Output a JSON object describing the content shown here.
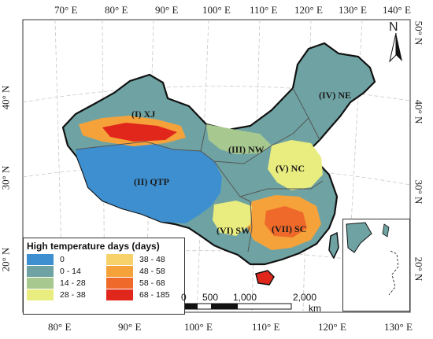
{
  "top_lon_labels": [
    "70° E",
    "80° E",
    "90° E",
    "100° E",
    "110° E",
    "120° E",
    "130° E",
    "140° E"
  ],
  "bottom_lon_labels": [
    "80° E",
    "90° E",
    "100° E",
    "110° E",
    "120° E",
    "130° E"
  ],
  "left_lat_labels": [
    "40° N",
    "30° N",
    "20° N"
  ],
  "right_lat_labels": [
    "50° N",
    "40° N",
    "30° N",
    "20° N"
  ],
  "north_arrow": "N",
  "regions": {
    "xj": "(I) XJ",
    "qtp": "(II) QTP",
    "nw": "(III) NW",
    "ne": "(IV) NE",
    "nc": "(V) NC",
    "sw": "(VI) SW",
    "sc": "(VII) SC"
  },
  "legend": {
    "title": "High temperature days (days)",
    "items": [
      {
        "label": "0",
        "color": "#3d8fd0"
      },
      {
        "label": "38 - 48",
        "color": "#f7d26a"
      },
      {
        "label": "0 - 14",
        "color": "#6fa3a3"
      },
      {
        "label": "48 - 58",
        "color": "#f6a23a"
      },
      {
        "label": "14 - 28",
        "color": "#a7c98f"
      },
      {
        "label": "58 - 68",
        "color": "#ef6a2a"
      },
      {
        "label": "28 - 38",
        "color": "#e9ec7e"
      },
      {
        "label": "68 - 185",
        "color": "#e1261c"
      }
    ]
  },
  "scale": {
    "ticks": [
      "0",
      "500",
      "1,000",
      "2,000"
    ],
    "unit": "km"
  }
}
